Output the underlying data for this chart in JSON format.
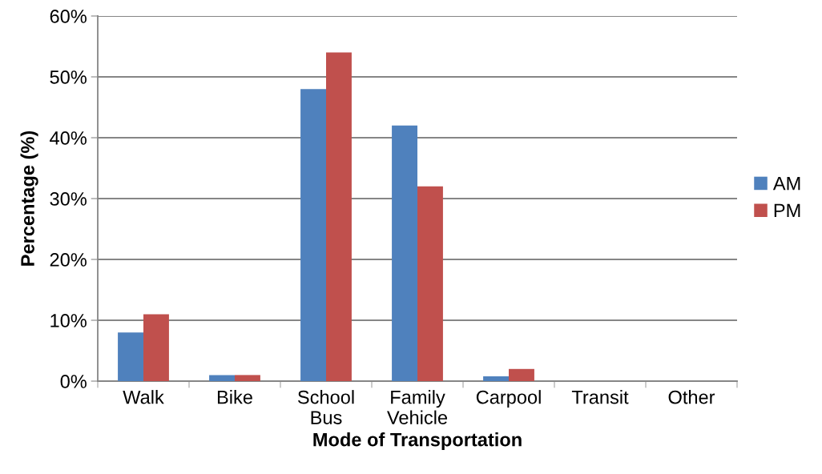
{
  "chart_data": {
    "type": "bar",
    "xlabel": "Mode of Transportation",
    "ylabel": "Percentage (%)",
    "categories": [
      "Walk",
      "Bike",
      "School\nBus",
      "Family\nVehicle",
      "Carpool",
      "Transit",
      "Other"
    ],
    "series": [
      {
        "name": "AM",
        "color": "#4f81bd",
        "values": [
          8,
          1,
          48,
          42,
          0.8,
          0,
          0
        ]
      },
      {
        "name": "PM",
        "color": "#c0504d",
        "values": [
          11,
          1,
          54,
          32,
          2,
          0,
          0
        ]
      }
    ],
    "ylim": [
      0,
      60
    ],
    "yticks": [
      {
        "value": 0,
        "label": "0%"
      },
      {
        "value": 10,
        "label": "10%"
      },
      {
        "value": 20,
        "label": "20%"
      },
      {
        "value": 30,
        "label": "30%"
      },
      {
        "value": 40,
        "label": "40%"
      },
      {
        "value": 50,
        "label": "50%"
      },
      {
        "value": 60,
        "label": "60%"
      }
    ],
    "grid": "y",
    "legend": "right"
  }
}
